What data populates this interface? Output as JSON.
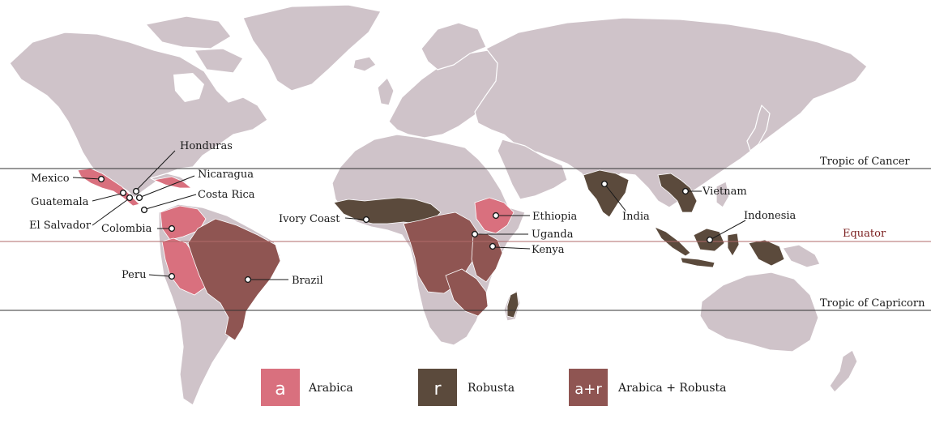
{
  "lines": {
    "cancer": "Tropic of Cancer",
    "equator": "Equator",
    "capricorn": "Tropic of Capricorn"
  },
  "countries": {
    "mexico": "Mexico",
    "honduras": "Honduras",
    "nicaragua": "Nicaragua",
    "guatemala": "Guatemala",
    "costa_rica": "Costa Rica",
    "el_salvador": "El Salvador",
    "colombia": "Colombia",
    "peru": "Peru",
    "brazil": "Brazil",
    "ivory_coast": "Ivory Coast",
    "ethiopia": "Ethiopia",
    "uganda": "Uganda",
    "kenya": "Kenya",
    "india": "India",
    "vietnam": "Vietnam",
    "indonesia": "Indonesia"
  },
  "legend": [
    {
      "symbol": "a",
      "label": "Arabica",
      "color": "#d9707e"
    },
    {
      "symbol": "r",
      "label": "Robusta",
      "color": "#5b4a3c"
    },
    {
      "symbol": "a+r",
      "label": "Arabica + Robusta",
      "color": "#8f5552"
    }
  ],
  "colors": {
    "land": "#cfc3c9",
    "arabica": "#d9707e",
    "robusta": "#5b4a3c",
    "mixed": "#8f5552",
    "equator_line": "#b06a6a"
  }
}
